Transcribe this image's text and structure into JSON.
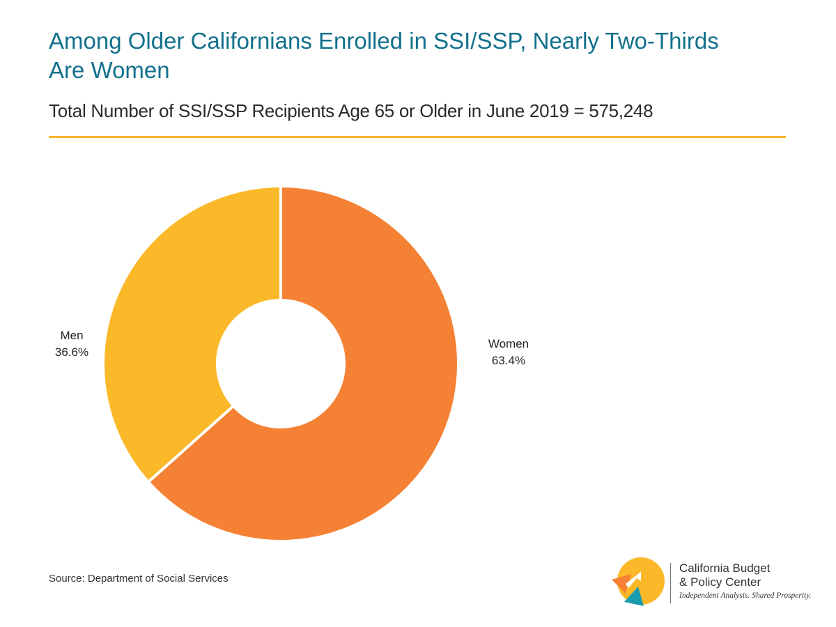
{
  "header": {
    "title": "Among Older Californians Enrolled in SSI/SSP, Nearly Two-Thirds Are Women",
    "subtitle": "Total Number of SSI/SSP Recipients Age 65 or Older in June 2019 = 575,248"
  },
  "chart_data": {
    "type": "pie",
    "style": "donut",
    "title": "Among Older Californians Enrolled in SSI/SSP, Nearly Two-Thirds Are Women",
    "subtitle": "Total Number of SSI/SSP Recipients Age 65 or Older in June 2019 = 575,248",
    "categories": [
      "Women",
      "Men"
    ],
    "values": [
      63.4,
      36.6
    ],
    "value_labels": [
      "63.4%",
      "36.6%"
    ],
    "colors": [
      "#f58134",
      "#fbb829"
    ],
    "start_angle_deg": 0,
    "direction": "clockwise",
    "legend": "none"
  },
  "labels": {
    "men_name": "Men",
    "men_value": "36.6%",
    "women_name": "Women",
    "women_value": "63.4%"
  },
  "footer": {
    "source": "Source: Department of Social Services"
  },
  "logo": {
    "name_line1": "California Budget",
    "name_line2": "& Policy Center",
    "tagline": "Independent Analysis. Shared Prosperity.",
    "colors": [
      "#fbb829",
      "#f58134",
      "#1a9bb0"
    ]
  },
  "theme": {
    "title_color": "#12708c",
    "rule_color": "#f7b52b"
  }
}
